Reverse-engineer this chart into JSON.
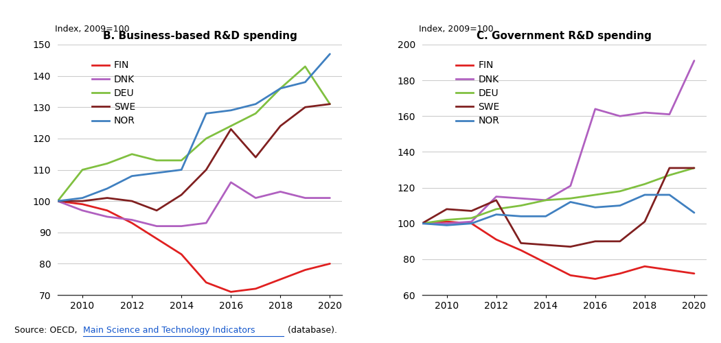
{
  "title_B": "B. Business-based R&D spending",
  "title_C": "C. Government R&D spending",
  "index_label": "Index, 2009=100",
  "years": [
    2009,
    2010,
    2011,
    2012,
    2013,
    2014,
    2015,
    2016,
    2017,
    2018,
    2019,
    2020
  ],
  "colors": {
    "FIN": "#e02020",
    "DNK": "#b060c0",
    "DEU": "#80c040",
    "SWE": "#802020",
    "NOR": "#4080c0"
  },
  "panel_B": {
    "FIN": [
      100,
      99,
      97,
      93,
      88,
      83,
      74,
      71,
      72,
      75,
      78,
      80
    ],
    "DNK": [
      100,
      97,
      95,
      94,
      92,
      92,
      93,
      106,
      101,
      103,
      101,
      101
    ],
    "DEU": [
      100,
      110,
      112,
      115,
      113,
      113,
      120,
      124,
      128,
      136,
      143,
      131
    ],
    "SWE": [
      100,
      100,
      101,
      100,
      97,
      102,
      110,
      123,
      114,
      124,
      130,
      131
    ],
    "NOR": [
      100,
      101,
      104,
      108,
      109,
      110,
      128,
      129,
      131,
      136,
      138,
      147
    ]
  },
  "panel_C": {
    "FIN": [
      100,
      101,
      100,
      91,
      85,
      78,
      71,
      69,
      72,
      76,
      74,
      72
    ],
    "DNK": [
      100,
      100,
      101,
      115,
      114,
      113,
      121,
      164,
      160,
      162,
      161,
      191
    ],
    "DEU": [
      100,
      102,
      103,
      108,
      110,
      113,
      114,
      116,
      118,
      122,
      127,
      131
    ],
    "SWE": [
      100,
      108,
      107,
      113,
      89,
      88,
      87,
      90,
      90,
      101,
      131,
      131
    ],
    "NOR": [
      100,
      99,
      100,
      105,
      104,
      104,
      112,
      109,
      110,
      116,
      116,
      106
    ]
  },
  "ylim_B": [
    70,
    150
  ],
  "ylim_C": [
    60,
    200
  ],
  "yticks_B": [
    70,
    80,
    90,
    100,
    110,
    120,
    130,
    140,
    150
  ],
  "yticks_C": [
    60,
    80,
    100,
    120,
    140,
    160,
    180,
    200
  ],
  "xticks": [
    2010,
    2012,
    2014,
    2016,
    2018,
    2020
  ],
  "xlim": [
    2009,
    2020.5
  ],
  "legend_order": [
    "FIN",
    "DNK",
    "DEU",
    "SWE",
    "NOR"
  ]
}
